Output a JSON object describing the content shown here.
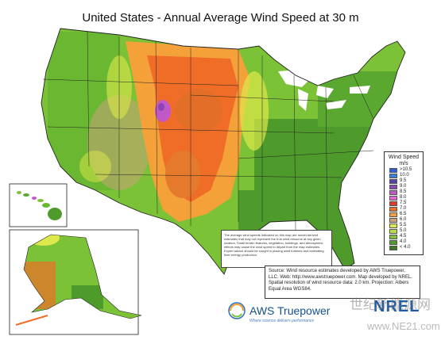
{
  "title": "United States - Annual Average Wind Speed at 30 m",
  "legend": {
    "title": "Wind Speed",
    "unit": "m/s",
    "items": [
      {
        "label": ">10.5",
        "color": "#2d5fd8"
      },
      {
        "label": "10.0",
        "color": "#3b7fe0"
      },
      {
        "label": "9.5",
        "color": "#5a3fa8"
      },
      {
        "label": "9.0",
        "color": "#8b46b3"
      },
      {
        "label": "8.5",
        "color": "#c058c8"
      },
      {
        "label": "8.0",
        "color": "#e06ad0"
      },
      {
        "label": "7.5",
        "color": "#e23a2a"
      },
      {
        "label": "7.0",
        "color": "#ef6d26"
      },
      {
        "label": "6.5",
        "color": "#f4a13a"
      },
      {
        "label": "6.0",
        "color": "#c8a37a"
      },
      {
        "label": "5.5",
        "color": "#dde84a"
      },
      {
        "label": "5.0",
        "color": "#b6dd45"
      },
      {
        "label": "4.5",
        "color": "#7cc236"
      },
      {
        "label": "4.0",
        "color": "#4e9a2a"
      },
      {
        "label": "< 4.0",
        "color": "#3c7a22"
      }
    ]
  },
  "note": "The average wind speeds indicated on this map are model-derived estimates that may not represent the true wind resource at any given location. Small terrain features, vegetation, buildings, and atmospheric effects may cause the wind speed to depart from the map estimates. Expert advice should be sought in placing wind turbines and estimating their energy production.",
  "source": {
    "line1": "Source: Wind resource estimates developed by AWS Truepower, LLC. Web: http://www.awstruepower.com. Map developed by NREL. Spatial resolution of wind resource data: 2.0 km. Projection: Albers Equal Area WGS84."
  },
  "logos": {
    "aws_name": "AWS Truepower",
    "aws_tagline": "Where science delivers performance",
    "nrel": "NREL"
  },
  "watermark": {
    "text1": "世纪新能源网",
    "text2": "www.NE21.com"
  },
  "colors": {
    "ocean": "#ffffff",
    "land_low": "#4e9a2a",
    "land_mid": "#7cc236",
    "plains": "#ef6d26",
    "mountain": "#c8a37a",
    "border": "#222222"
  }
}
